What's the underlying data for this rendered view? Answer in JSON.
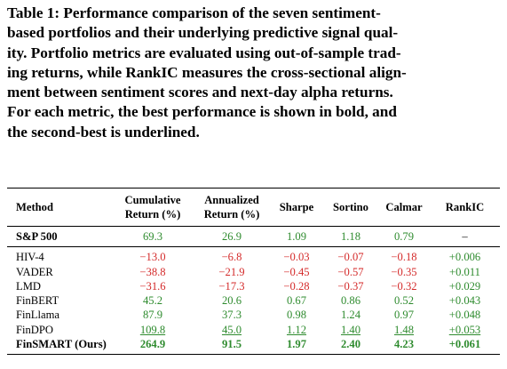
{
  "caption": {
    "lines": [
      "Table 1: Performance comparison of the seven sentiment-",
      "based portfolios and their underlying predictive signal qual-",
      "ity. Portfolio metrics are evaluated using out-of-sample trad-",
      "ing returns, while RankIC measures the cross-sectional align-",
      "ment between sentiment scores and next-day alpha returns.",
      "For each metric, the best performance is shown in bold, and",
      "the second-best is underlined."
    ]
  },
  "table": {
    "header": [
      [
        "Method"
      ],
      [
        "Cumulative",
        "Return (%)"
      ],
      [
        "Annualized",
        "Return (%)"
      ],
      [
        "Sharpe"
      ],
      [
        "Sortino"
      ],
      [
        "Calmar"
      ],
      [
        "RankIC"
      ]
    ],
    "sections": [
      [
        {
          "cells": [
            "S&P 500",
            "69.3",
            "26.9",
            "1.09",
            "1.18",
            "0.79",
            "–"
          ],
          "bold": [
            0
          ],
          "underline": []
        }
      ],
      [
        {
          "cells": [
            "HIV-4",
            "−13.0",
            "−6.8",
            "−0.03",
            "−0.07",
            "−0.18",
            "+0.006"
          ],
          "bold": [],
          "underline": []
        },
        {
          "cells": [
            "VADER",
            "−38.8",
            "−21.9",
            "−0.45",
            "−0.57",
            "−0.35",
            "+0.011"
          ],
          "bold": [],
          "underline": []
        },
        {
          "cells": [
            "LMD",
            "−31.6",
            "−17.3",
            "−0.28",
            "−0.37",
            "−0.32",
            "+0.029"
          ],
          "bold": [],
          "underline": []
        },
        {
          "cells": [
            "FinBERT",
            "45.2",
            "20.6",
            "0.67",
            "0.86",
            "0.52",
            "+0.043"
          ],
          "bold": [],
          "underline": []
        },
        {
          "cells": [
            "FinLlama",
            "87.9",
            "37.3",
            "0.98",
            "1.24",
            "0.97",
            "+0.048"
          ],
          "bold": [],
          "underline": []
        },
        {
          "cells": [
            "FinDPO",
            "109.8",
            "45.0",
            "1.12",
            "1.40",
            "1.48",
            "+0.053"
          ],
          "bold": [],
          "underline": [
            1,
            2,
            3,
            4,
            5,
            6
          ]
        },
        {
          "cells": [
            "FinSMART (Ours)",
            "264.9",
            "91.5",
            "1.97",
            "2.40",
            "4.23",
            "+0.061"
          ],
          "bold": [
            0,
            1,
            2,
            3,
            4,
            5,
            6
          ],
          "underline": []
        }
      ]
    ]
  }
}
